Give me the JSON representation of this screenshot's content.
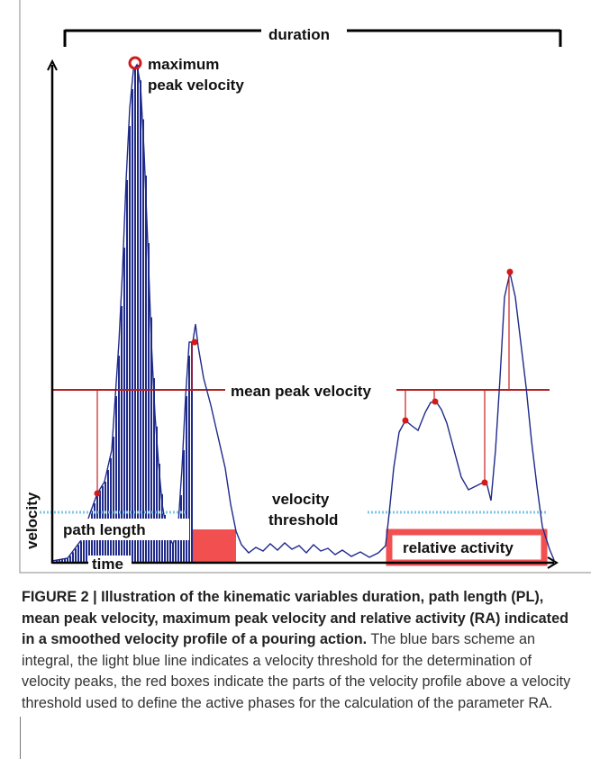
{
  "figure": {
    "labels": {
      "duration": "duration",
      "maximum_line1": "maximum",
      "maximum_line2": "peak velocity",
      "mean_peak": "mean peak velocity",
      "threshold_line1": "velocity",
      "threshold_line2": "threshold",
      "path_length": "path length",
      "relative_activity": "relative activity",
      "time_axis": "time",
      "velocity_axis": "velocity"
    },
    "colors": {
      "profile": "#1f2a8a",
      "bars": "#1f2a8a",
      "peak_marker": "#d11a1a",
      "mean_line": "#b81d1d",
      "threshold": "#7fc8ea",
      "active_box": "#f25050",
      "axis": "#000000"
    }
  },
  "caption": {
    "lead": "FIGURE 2 | Illustration of the kinematic variables duration, path length (PL), mean peak velocity, maximum peak velocity and relative activity (RA) indicated in a smoothed velocity profile of a pouring action.",
    "body": "The blue bars scheme an integral, the light blue line indicates a velocity threshold for the determination of velocity peaks, the red boxes indicate the parts of the velocity profile above a velocity threshold used to define the active phases for the calculation of the parameter RA."
  }
}
